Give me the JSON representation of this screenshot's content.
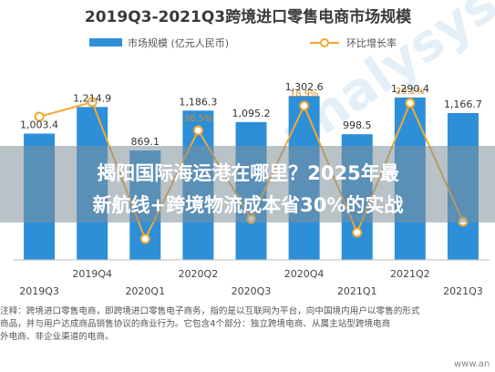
{
  "chart_data": {
    "type": "bar",
    "title": "2019Q3-2021Q3跨境进口零售电商市场规模",
    "categories": [
      "2019Q3",
      "2019Q4",
      "2020Q1",
      "2020Q2",
      "2020Q3",
      "2020Q4",
      "2021Q1",
      "2021Q2",
      "2021Q3"
    ],
    "series": [
      {
        "name": "市场规模  (亿元人民币)",
        "kind": "bar",
        "color": "#2e8fd9",
        "values": [
          1003.4,
          1214.9,
          869.1,
          1186.3,
          1095.2,
          1302.6,
          998.5,
          1290.4,
          1166.7
        ],
        "labels": [
          "1,003.4",
          "1,214.9",
          "869.1",
          "1,186.3",
          "1,095.2",
          "1,302.6",
          "998.5",
          "1,290.4",
          "1,166.7"
        ]
      },
      {
        "name": "环比增长率",
        "kind": "line",
        "color": "#f3a833",
        "values": [
          null,
          null,
          null,
          36.5,
          null,
          18.9,
          null,
          29.2,
          null
        ],
        "labels": [
          "",
          "",
          "",
          "36.5%",
          "",
          "18.9%",
          "",
          "29.2%",
          ""
        ]
      }
    ],
    "ylim": [
      0,
      1500
    ],
    "grid": false,
    "legend": "top-center"
  },
  "overlay": {
    "line1": "揭阳国际海运港在哪里？2025年最",
    "line2": "新航线+跨境物流成本省30%的实战"
  },
  "note": {
    "line1": "注释：跨境进口零售电商，即跨境进口零售电子商务，指的是以互联网为平台，向中国境内用户以零售的形式",
    "line2": "商品，并与用户达成商品销售协议的商业行为。它包含4个部分：独立跨境电商、从属主站型跨境电商",
    "line3": "外电商、非企业渠道的电商。"
  },
  "watermark": "www.an",
  "watermark_logo": "analysys",
  "colors": {
    "title_bar": "#2aa3c9",
    "bar": "#2e8fd9",
    "line": "#f3a833",
    "overlay_band": "#8a9aa3"
  }
}
